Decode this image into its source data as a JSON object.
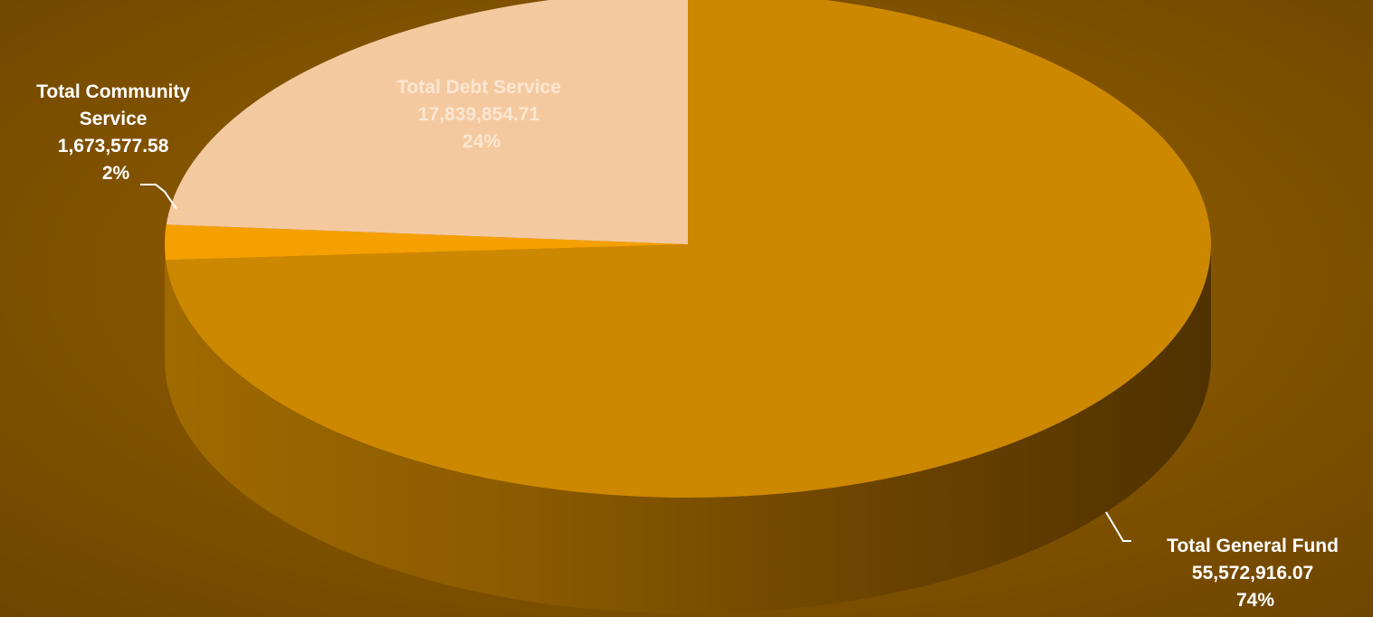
{
  "chart_data": {
    "type": "pie",
    "style": "3d",
    "slices": [
      {
        "label_lines": [
          "Total General Fund"
        ],
        "value": "55,572,916.07",
        "percent": "74%",
        "raw": 55572916.07,
        "color": "#cc8800",
        "label_color": "#ffffff"
      },
      {
        "label_lines": [
          "Total Community",
          "Service"
        ],
        "value": "1,673,577.58",
        "percent": "2%",
        "raw": 1673577.58,
        "color": "#f5a000",
        "label_color": "#ffffff"
      },
      {
        "label_lines": [
          "Total Debt Service"
        ],
        "value": "17,839,854.71",
        "percent": "24%",
        "raw": 17839854.71,
        "color": "#f5c9a0",
        "label_color": "#fbe7d2"
      }
    ],
    "background": "#8a5a00"
  }
}
